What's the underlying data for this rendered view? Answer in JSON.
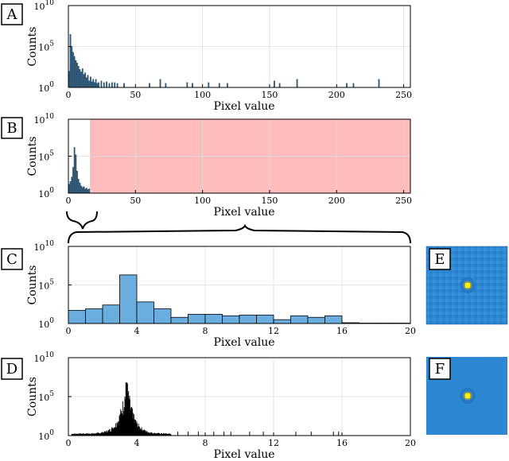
{
  "colors": {
    "bar_dark": "#2c5a7c",
    "bar_light": "#6aaedf",
    "excluded_region": "#ffbcbc",
    "spike": "#000000",
    "image_bg": "#2d86d2",
    "image_spot": "#fff200"
  },
  "chart_data": [
    {
      "panel": "A",
      "type": "bar",
      "xlabel": "Pixel value",
      "ylabel": "Counts",
      "xlim": [
        0,
        255
      ],
      "ylim_log10": [
        0,
        10
      ],
      "y_scale": "log",
      "xticks": [
        0,
        50,
        100,
        150,
        200,
        250
      ],
      "yticks": [
        {
          "exp": 0,
          "label": "10",
          "sup": "0"
        },
        {
          "exp": 5,
          "label": "10",
          "sup": "5"
        },
        {
          "exp": 10,
          "label": "10",
          "sup": "10"
        }
      ],
      "grid": true,
      "bars_log10": [
        {
          "x": 0,
          "v": 2.0
        },
        {
          "x": 1,
          "v": 6.5
        },
        {
          "x": 2,
          "v": 5.0
        },
        {
          "x": 3,
          "v": 4.3
        },
        {
          "x": 4,
          "v": 3.8
        },
        {
          "x": 5,
          "v": 3.3
        },
        {
          "x": 6,
          "v": 3.0
        },
        {
          "x": 7,
          "v": 2.6
        },
        {
          "x": 8,
          "v": 2.2
        },
        {
          "x": 9,
          "v": 1.9
        },
        {
          "x": 10,
          "v": 2.3
        },
        {
          "x": 11,
          "v": 1.6
        },
        {
          "x": 12,
          "v": 1.8
        },
        {
          "x": 13,
          "v": 1.2
        },
        {
          "x": 14,
          "v": 1.5
        },
        {
          "x": 15,
          "v": 0.8
        },
        {
          "x": 16,
          "v": 1.3
        },
        {
          "x": 17,
          "v": 0.7
        },
        {
          "x": 18,
          "v": 1.0
        },
        {
          "x": 19,
          "v": 0.6
        },
        {
          "x": 20,
          "v": 1.0
        },
        {
          "x": 21,
          "v": 0.5
        },
        {
          "x": 22,
          "v": 0.6
        },
        {
          "x": 24,
          "v": 0.8
        },
        {
          "x": 26,
          "v": 0.6
        },
        {
          "x": 28,
          "v": 0.7
        },
        {
          "x": 30,
          "v": 0.5
        },
        {
          "x": 32,
          "v": 0.6
        },
        {
          "x": 34,
          "v": 0.6
        },
        {
          "x": 36,
          "v": 0.5
        },
        {
          "x": 41,
          "v": 0.5
        },
        {
          "x": 60,
          "v": 0.5
        },
        {
          "x": 68,
          "v": 1.0
        },
        {
          "x": 72,
          "v": 0.5
        },
        {
          "x": 88,
          "v": 0.6
        },
        {
          "x": 92,
          "v": 0.5
        },
        {
          "x": 104,
          "v": 0.6
        },
        {
          "x": 112,
          "v": 0.5
        },
        {
          "x": 118,
          "v": 0.5
        },
        {
          "x": 153,
          "v": 0.8
        },
        {
          "x": 157,
          "v": 0.5
        },
        {
          "x": 170,
          "v": 1.0
        },
        {
          "x": 207,
          "v": 0.5
        },
        {
          "x": 212,
          "v": 0.5
        },
        {
          "x": 231,
          "v": 1.0
        }
      ]
    },
    {
      "panel": "B",
      "type": "bar",
      "xlabel": "Pixel value",
      "ylabel": "Counts",
      "xlim": [
        0,
        255
      ],
      "ylim_log10": [
        0,
        10
      ],
      "y_scale": "log",
      "xticks": [
        0,
        50,
        100,
        150,
        200,
        250
      ],
      "yticks": [
        {
          "exp": 0,
          "label": "10",
          "sup": "0"
        },
        {
          "exp": 5,
          "label": "10",
          "sup": "5"
        },
        {
          "exp": 10,
          "label": "10",
          "sup": "10"
        }
      ],
      "grid": true,
      "excluded_range": [
        16,
        255
      ],
      "bars_log10": [
        {
          "x": 0,
          "v": 1.2
        },
        {
          "x": 1,
          "v": 1.6
        },
        {
          "x": 2,
          "v": 2.2
        },
        {
          "x": 3,
          "v": 3.5
        },
        {
          "x": 4,
          "v": 6.2
        },
        {
          "x": 5,
          "v": 5.2
        },
        {
          "x": 6,
          "v": 3.0
        },
        {
          "x": 7,
          "v": 1.9
        },
        {
          "x": 8,
          "v": 1.4
        },
        {
          "x": 9,
          "v": 1.0
        },
        {
          "x": 10,
          "v": 0.8
        },
        {
          "x": 11,
          "v": 0.9
        },
        {
          "x": 12,
          "v": 0.6
        },
        {
          "x": 13,
          "v": 0.7
        },
        {
          "x": 14,
          "v": 0.5
        },
        {
          "x": 15,
          "v": 0.6
        }
      ]
    },
    {
      "panel": "C",
      "type": "bar",
      "xlabel": "Pixel value",
      "ylabel": "Counts",
      "xlim": [
        0,
        20
      ],
      "ylim_log10": [
        0,
        10
      ],
      "y_scale": "log",
      "xticks": [
        0,
        4,
        8,
        12,
        16,
        20
      ],
      "yticks": [
        {
          "exp": 0,
          "label": "10",
          "sup": "0"
        },
        {
          "exp": 5,
          "label": "10",
          "sup": "5"
        },
        {
          "exp": 10,
          "label": "10",
          "sup": "10"
        }
      ],
      "grid": true,
      "bin_width": 1,
      "bars_log10": [
        {
          "x": 0,
          "v": 1.7
        },
        {
          "x": 1,
          "v": 1.9
        },
        {
          "x": 2,
          "v": 2.4
        },
        {
          "x": 3,
          "v": 6.3
        },
        {
          "x": 4,
          "v": 2.8
        },
        {
          "x": 5,
          "v": 1.9
        },
        {
          "x": 6,
          "v": 0.8
        },
        {
          "x": 7,
          "v": 1.2
        },
        {
          "x": 8,
          "v": 1.2
        },
        {
          "x": 9,
          "v": 1.0
        },
        {
          "x": 10,
          "v": 1.1
        },
        {
          "x": 11,
          "v": 1.1
        },
        {
          "x": 12,
          "v": 0.5
        },
        {
          "x": 13,
          "v": 1.0
        },
        {
          "x": 14,
          "v": 0.8
        },
        {
          "x": 15,
          "v": 1.0
        },
        {
          "x": 16,
          "v": 0.1
        },
        {
          "x": 17,
          "v": 0.05
        },
        {
          "x": 18,
          "v": 0.05
        },
        {
          "x": 19,
          "v": 0.05
        }
      ]
    },
    {
      "panel": "D",
      "type": "bar",
      "xlabel": "Pixel value",
      "ylabel": "Counts",
      "xlim": [
        0,
        20
      ],
      "ylim_log10": [
        0,
        10
      ],
      "y_scale": "log",
      "xticks": [
        0,
        4,
        8,
        12,
        16,
        20
      ],
      "yticks": [
        {
          "exp": 0,
          "label": "10",
          "sup": "0"
        },
        {
          "exp": 5,
          "label": "10",
          "sup": "5"
        },
        {
          "exp": 10,
          "label": "10",
          "sup": "10"
        }
      ],
      "grid": true,
      "peak": {
        "x": 3.4,
        "v": 6.8
      },
      "base_spread": [
        0.2,
        6.0
      ],
      "sparse_spikes": [
        6.4,
        7.0,
        7.6,
        8.5,
        9.1,
        9.5,
        10.6,
        11.4,
        13.3,
        14.2,
        15.5,
        15.8
      ]
    }
  ],
  "panels": {
    "A": {
      "letter": "A"
    },
    "B": {
      "letter": "B"
    },
    "C": {
      "letter": "C"
    },
    "D": {
      "letter": "D"
    },
    "E": {
      "letter": "E",
      "image": "psf-image"
    },
    "F": {
      "letter": "F",
      "image": "psf-image"
    }
  }
}
